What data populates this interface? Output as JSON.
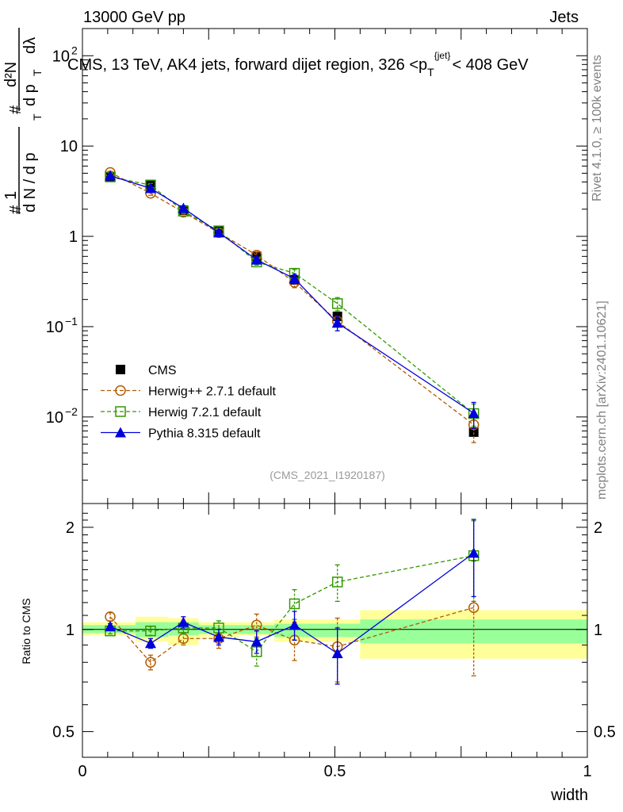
{
  "header": {
    "left": "13000 GeV pp",
    "right": "Jets"
  },
  "side_labels": {
    "rivet": "Rivet 4.1.0, ≥ 100k events",
    "mcplots": "mcplots.cern.ch [arXiv:2401.10621]"
  },
  "chart_data": [
    {
      "type": "line",
      "panel": "main",
      "title_parts": {
        "prefix": "CMS, 13 TeV, AK4 jets, forward dijet region, 326 <p",
        "sub": "T",
        "sup": "{jet}",
        "suffix": "< 408 GeV"
      },
      "ylabel": "1/N dN/dp_T d^2N/dp_T dlambda",
      "ylabel_parts": {
        "n1": "1",
        "d1": "d N / d p",
        "n2": "d²N",
        "d2": "d p",
        "d2b": "dλ",
        "t": "T",
        "h": "#"
      },
      "yscale": "log",
      "ylim": [
        0.0011,
        200
      ],
      "xlim": [
        0,
        1
      ],
      "y_ticks": [
        {
          "value": 0.01,
          "label": "10",
          "exp": "−2"
        },
        {
          "value": 0.1,
          "label": "10",
          "exp": "−1"
        },
        {
          "value": 1,
          "label": "1",
          "exp": ""
        },
        {
          "value": 10,
          "label": "10",
          "exp": ""
        },
        {
          "value": 100,
          "label": "10",
          "exp": "2"
        }
      ],
      "watermark": "(CMS_2021_I1920187)",
      "x": [
        0.055,
        0.135,
        0.2,
        0.27,
        0.345,
        0.42,
        0.505,
        0.775
      ],
      "series": [
        {
          "name": "CMS",
          "color": "#000000",
          "style": "markers",
          "marker": "filled-square",
          "values": [
            4.6,
            3.75,
            1.95,
            1.15,
            0.6,
            0.33,
            0.13,
            0.0068
          ],
          "err": [
            0.1,
            0.08,
            0.05,
            0.03,
            0.02,
            0.01,
            0.007,
            0.0003
          ]
        },
        {
          "name": "Herwig++ 2.7.1 default",
          "color": "#b35a00",
          "style": "dashed",
          "marker": "open-circle",
          "values": [
            5.1,
            3.0,
            1.85,
            1.1,
            0.62,
            0.31,
            0.115,
            0.0082
          ],
          "err": [
            0.15,
            0.15,
            0.08,
            0.06,
            0.05,
            0.04,
            0.015,
            0.003
          ]
        },
        {
          "name": "Herwig 7.2.1 default",
          "color": "#339900",
          "style": "dashed",
          "marker": "open-square",
          "values": [
            4.55,
            3.7,
            1.9,
            1.15,
            0.52,
            0.39,
            0.18,
            0.0109
          ],
          "err": [
            0.1,
            0.15,
            0.08,
            0.06,
            0.04,
            0.04,
            0.03,
            0.003
          ]
        },
        {
          "name": "Pythia 8.315 default",
          "color": "#0000dd",
          "style": "solid",
          "marker": "filled-triangle",
          "values": [
            4.7,
            3.4,
            2.05,
            1.1,
            0.55,
            0.34,
            0.11,
            0.011
          ],
          "err": [
            0.1,
            0.15,
            0.1,
            0.06,
            0.04,
            0.04,
            0.02,
            0.0035
          ]
        }
      ]
    },
    {
      "type": "line",
      "panel": "ratio",
      "ylabel": "Ratio to CMS",
      "xlabel": "width",
      "yscale": "log",
      "ylim": [
        0.42,
        2.35
      ],
      "xlim": [
        0,
        1
      ],
      "y_ticks": [
        {
          "value": 0.5,
          "label": "0.5"
        },
        {
          "value": 1,
          "label": "1"
        },
        {
          "value": 2,
          "label": "2"
        }
      ],
      "x_ticks": [
        {
          "value": 0,
          "label": "0"
        },
        {
          "value": 0.5,
          "label": "0.5"
        },
        {
          "value": 1,
          "label": "1"
        }
      ],
      "bands": [
        {
          "x0": 0.0,
          "x1": 0.105,
          "yellow": [
            0.96,
            1.05
          ],
          "green": [
            0.975,
            1.03
          ]
        },
        {
          "x0": 0.105,
          "x1": 0.17,
          "yellow": [
            0.92,
            1.09
          ],
          "green": [
            0.95,
            1.05
          ]
        },
        {
          "x0": 0.17,
          "x1": 0.23,
          "yellow": [
            0.9,
            1.08
          ],
          "green": [
            0.96,
            1.05
          ]
        },
        {
          "x0": 0.23,
          "x1": 0.31,
          "yellow": [
            0.95,
            1.05
          ],
          "green": [
            0.97,
            1.03
          ]
        },
        {
          "x0": 0.31,
          "x1": 0.38,
          "yellow": [
            0.96,
            1.05
          ],
          "green": [
            0.97,
            1.03
          ]
        },
        {
          "x0": 0.38,
          "x1": 0.55,
          "yellow": [
            0.92,
            1.07
          ],
          "green": [
            0.95,
            1.04
          ]
        },
        {
          "x0": 0.55,
          "x1": 1.0,
          "yellow": [
            0.82,
            1.14
          ],
          "green": [
            0.91,
            1.07
          ]
        }
      ],
      "x": [
        0.055,
        0.135,
        0.2,
        0.27,
        0.345,
        0.42,
        0.505,
        0.775
      ],
      "series": [
        {
          "name": "Herwig++ 2.7.1 default",
          "color": "#b35a00",
          "style": "dashed",
          "marker": "open-circle",
          "values": [
            1.09,
            0.8,
            0.94,
            0.94,
            1.03,
            0.93,
            0.89,
            1.16
          ],
          "err": [
            0.03,
            0.04,
            0.04,
            0.06,
            0.08,
            0.12,
            0.19,
            0.43
          ]
        },
        {
          "name": "Herwig 7.2.1 default",
          "color": "#339900",
          "style": "dashed",
          "marker": "open-square",
          "values": [
            0.99,
            0.99,
            1.01,
            1.01,
            0.86,
            1.19,
            1.38,
            1.65
          ],
          "err": [
            0.02,
            0.03,
            0.04,
            0.05,
            0.08,
            0.12,
            0.17,
            0.44
          ]
        },
        {
          "name": "Pythia 8.315 default",
          "color": "#0000dd",
          "style": "solid",
          "marker": "filled-triangle",
          "values": [
            1.02,
            0.91,
            1.05,
            0.95,
            0.92,
            1.03,
            0.85,
            1.68
          ],
          "err": [
            0.02,
            0.03,
            0.04,
            0.05,
            0.07,
            0.1,
            0.16,
            0.43
          ]
        }
      ]
    }
  ]
}
